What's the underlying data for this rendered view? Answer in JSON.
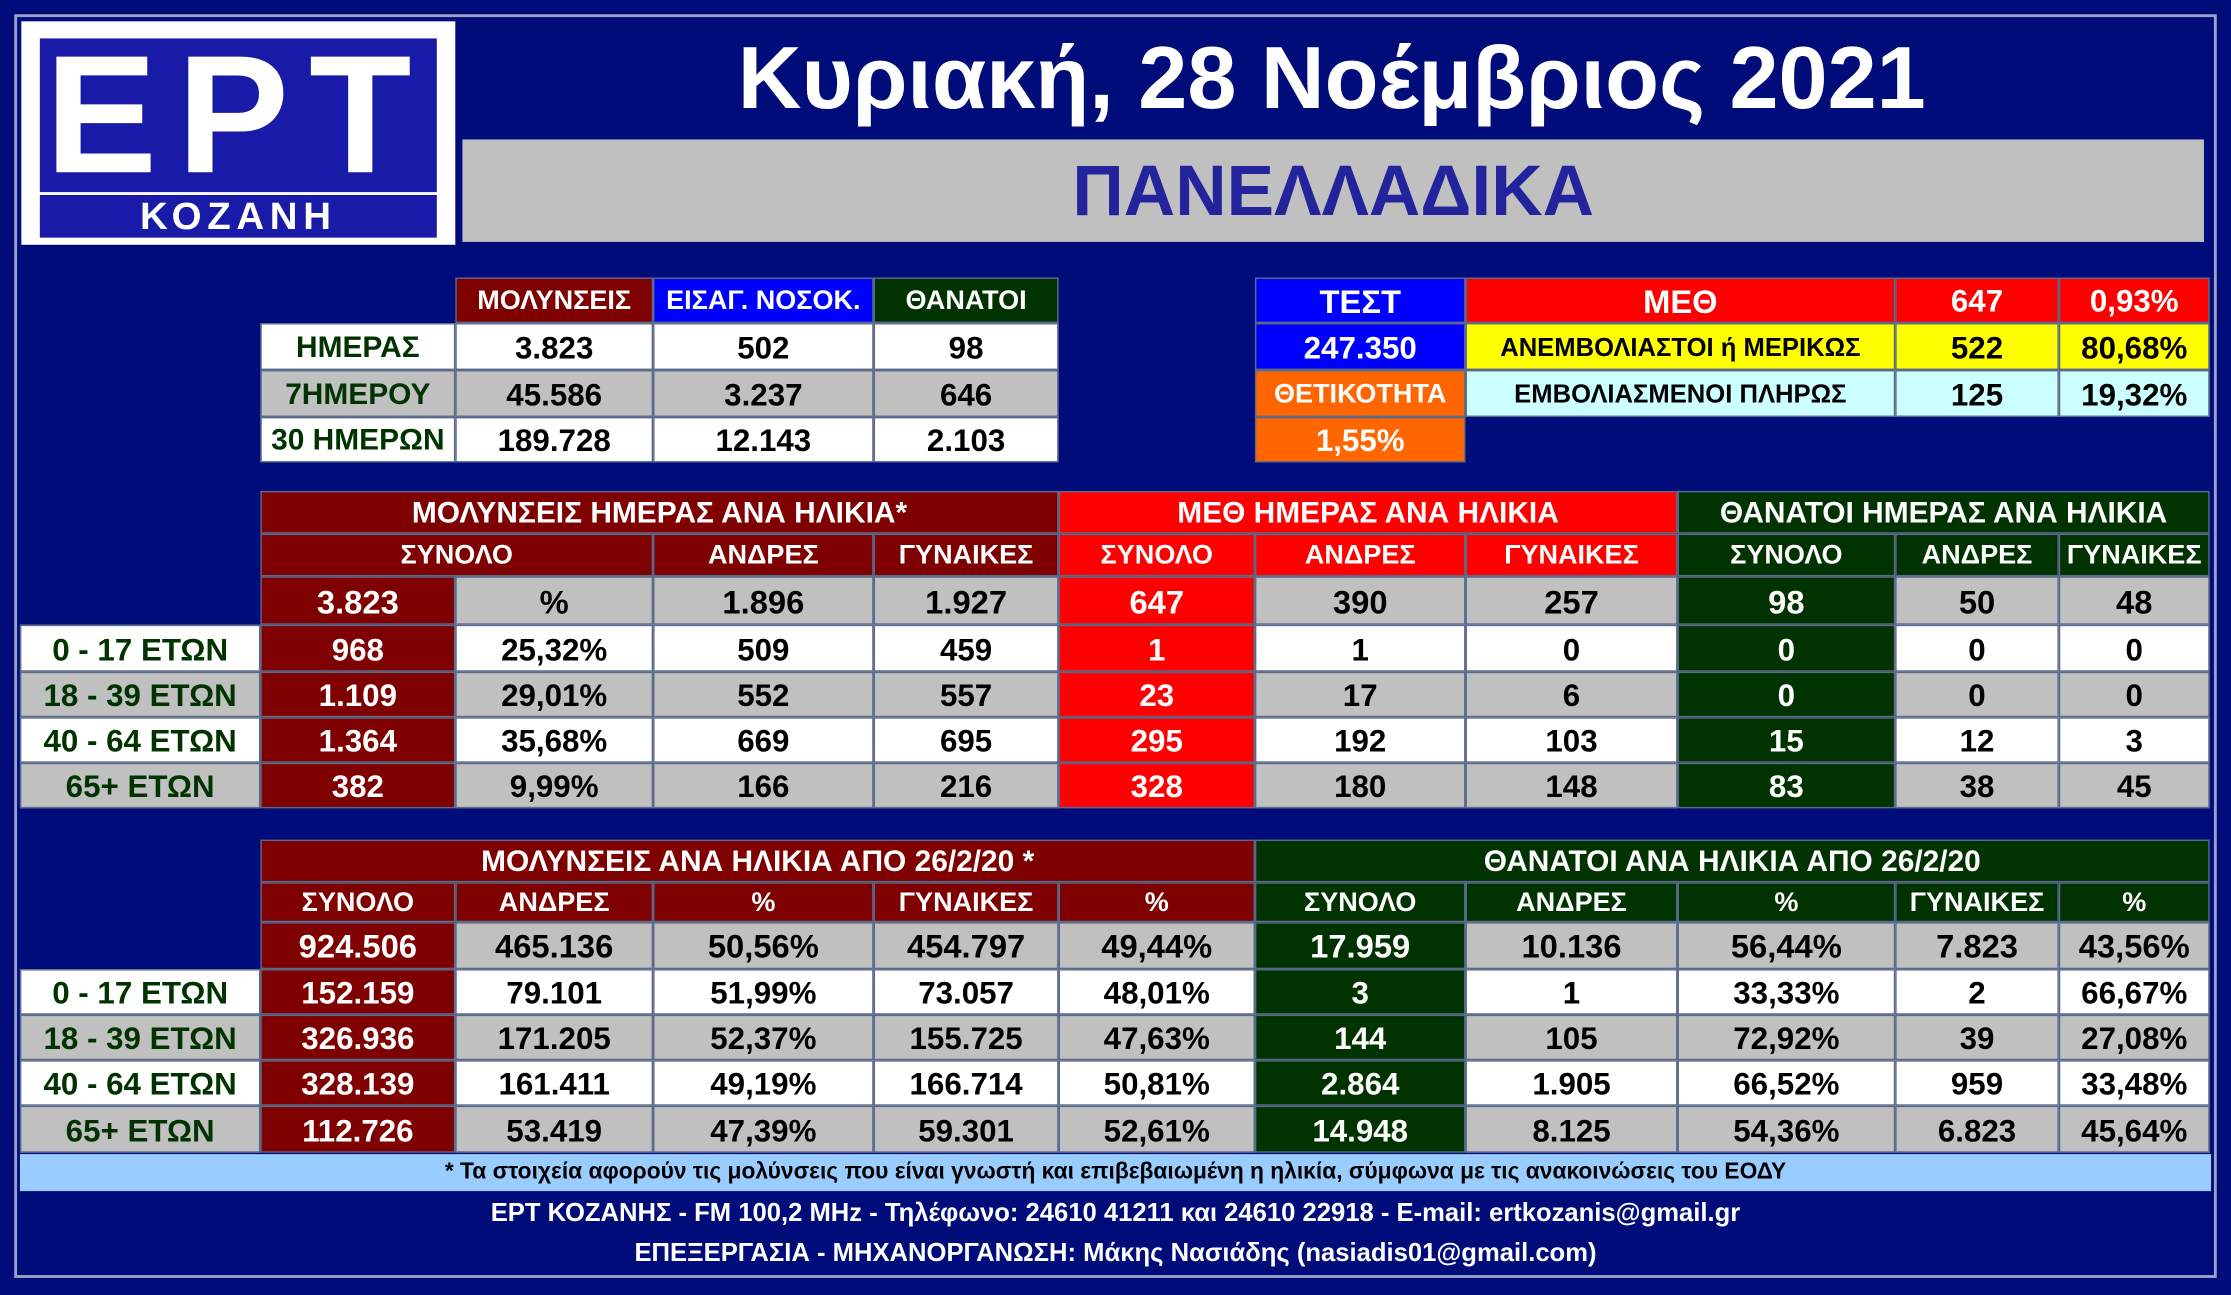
{
  "logo": {
    "main": "ΕΡΤ",
    "sub": "ΚΟΖΑΝΗ"
  },
  "header": {
    "date": "Κυριακή, 28 Νοέμβριος 2021",
    "region": "ΠΑΝΕΛΛΑΔΙΚΑ"
  },
  "summary": {
    "columns": [
      "ΜΟΛΥΝΣΕΙΣ",
      "ΕΙΣΑΓ. ΝΟΣΟΚ.",
      "ΘΑΝΑΤΟΙ"
    ],
    "rows": [
      {
        "label": "ΗΜΕΡΑΣ",
        "values": [
          "3.823",
          "502",
          "98"
        ]
      },
      {
        "label": "7ΗΜΕΡΟΥ",
        "values": [
          "45.586",
          "3.237",
          "646"
        ]
      },
      {
        "label": "30 ΗΜΕΡΩΝ",
        "values": [
          "189.728",
          "12.143",
          "2.103"
        ]
      }
    ]
  },
  "tests": {
    "test_label": "ΤΕΣΤ",
    "test_value": "247.350",
    "positivity_label": "ΘΕΤΙΚΟΤΗΤΑ",
    "positivity_value": "1,55%"
  },
  "icu": {
    "label": "ΜΕΘ",
    "total": "647",
    "total_pct": "0,93%",
    "unvaccinated_label": "ΑΝΕΜΒΟΛΙΑΣΤΟΙ ή ΜΕΡΙΚΩΣ",
    "unvaccinated": "522",
    "unvaccinated_pct": "80,68%",
    "vaccinated_label": "ΕΜΒΟΛΙΑΣΜΕΝΟΙ ΠΛΗΡΩΣ",
    "vaccinated": "125",
    "vaccinated_pct": "19,32%"
  },
  "daily_by_age": {
    "headers": {
      "infections": "ΜΟΛΥΝΣΕΙΣ ΗΜΕΡΑΣ ΑΝΑ ΗΛΙΚΙΑ*",
      "icu": "ΜΕΘ ΗΜΕΡΑΣ ΑΝΑ ΗΛΙΚΙΑ",
      "deaths": "ΘΑΝΑΤΟΙ ΗΜΕΡΑΣ ΑΝΑ ΗΛΙΚΙΑ"
    },
    "subheaders": {
      "total": "ΣΥΝΟΛΟ",
      "men": "ΑΝΔΡΕΣ",
      "women": "ΓΥΝΑΙΚΕΣ"
    },
    "totals": {
      "inf_total": "3.823",
      "pct_label": "%",
      "inf_men": "1.896",
      "inf_women": "1.927",
      "icu_total": "647",
      "icu_men": "390",
      "icu_women": "257",
      "death_total": "98",
      "death_men": "50",
      "death_women": "48"
    },
    "rows": [
      {
        "age": "0 - 17 ΕΤΩΝ",
        "values": [
          "968",
          "25,32%",
          "509",
          "459",
          "1",
          "1",
          "0",
          "0",
          "0",
          "0"
        ]
      },
      {
        "age": "18 - 39 ΕΤΩΝ",
        "values": [
          "1.109",
          "29,01%",
          "552",
          "557",
          "23",
          "17",
          "6",
          "0",
          "0",
          "0"
        ]
      },
      {
        "age": "40 - 64 ΕΤΩΝ",
        "values": [
          "1.364",
          "35,68%",
          "669",
          "695",
          "295",
          "192",
          "103",
          "15",
          "12",
          "3"
        ]
      },
      {
        "age": "65+ ΕΤΩΝ",
        "values": [
          "382",
          "9,99%",
          "166",
          "216",
          "328",
          "180",
          "148",
          "83",
          "38",
          "45"
        ]
      }
    ]
  },
  "cumulative_by_age": {
    "headers": {
      "infections": "ΜΟΛΥΝΣΕΙΣ ΑΝΑ ΗΛΙΚΙΑ ΑΠΟ 26/2/20 *",
      "deaths": "ΘΑΝΑΤΟΙ ΑΝΑ ΗΛΙΚΙΑ ΑΠΟ 26/2/20"
    },
    "subheaders": [
      "ΣΥΝΟΛΟ",
      "ΑΝΔΡΕΣ",
      "%",
      "ΓΥΝΑΙΚΕΣ",
      "%",
      "ΣΥΝΟΛΟ",
      "ΑΝΔΡΕΣ",
      "%",
      "ΓΥΝΑΙΚΕΣ",
      "%"
    ],
    "totals": [
      "924.506",
      "465.136",
      "50,56%",
      "454.797",
      "49,44%",
      "17.959",
      "10.136",
      "56,44%",
      "7.823",
      "43,56%"
    ],
    "rows": [
      {
        "age": "0 - 17 ΕΤΩΝ",
        "values": [
          "152.159",
          "79.101",
          "51,99%",
          "73.057",
          "48,01%",
          "3",
          "1",
          "33,33%",
          "2",
          "66,67%"
        ]
      },
      {
        "age": "18 - 39 ΕΤΩΝ",
        "values": [
          "326.936",
          "171.205",
          "52,37%",
          "155.725",
          "47,63%",
          "144",
          "105",
          "72,92%",
          "39",
          "27,08%"
        ]
      },
      {
        "age": "40 - 64 ΕΤΩΝ",
        "values": [
          "328.139",
          "161.411",
          "49,19%",
          "166.714",
          "50,81%",
          "2.864",
          "1.905",
          "66,52%",
          "959",
          "33,48%"
        ]
      },
      {
        "age": "65+ ΕΤΩΝ",
        "values": [
          "112.726",
          "53.419",
          "47,39%",
          "59.301",
          "52,61%",
          "14.948",
          "8.125",
          "54,36%",
          "6.823",
          "45,64%"
        ]
      }
    ]
  },
  "footer": {
    "note": "* Τα στοιχεία αφορούν τις μολύνσεις που είναι γνωστή και επιβεβαιωμένη η ηλικία, σύμφωνα με τις ανακοινώσεις του ΕΟΔΥ",
    "contact": "ΕΡΤ ΚΟΖΑΝΗΣ - FM 100,2 MHz - Τηλέφωνο:  24610 41211 και 24610 22918 - E-mail: ertkozanis@gmail.gr",
    "credits": "ΕΠΕΞΕΡΓΑΣΙΑ - ΜΗΧΑΝΟΡΓΑΝΩΣΗ: Μάκης Νασιάδης (nasiadis01@gmail.com)"
  },
  "colors": {
    "background": "#000c7a",
    "infections": "#7f0000",
    "icu": "#ff0000",
    "deaths": "#003300",
    "hospital": "#0000ff",
    "gray": "#c0c0c0",
    "white": "#ffffff",
    "positivity": "#ff6600",
    "yellow": "#ffff00",
    "cyan": "#ccffff",
    "note_bar": "#99ccff"
  }
}
